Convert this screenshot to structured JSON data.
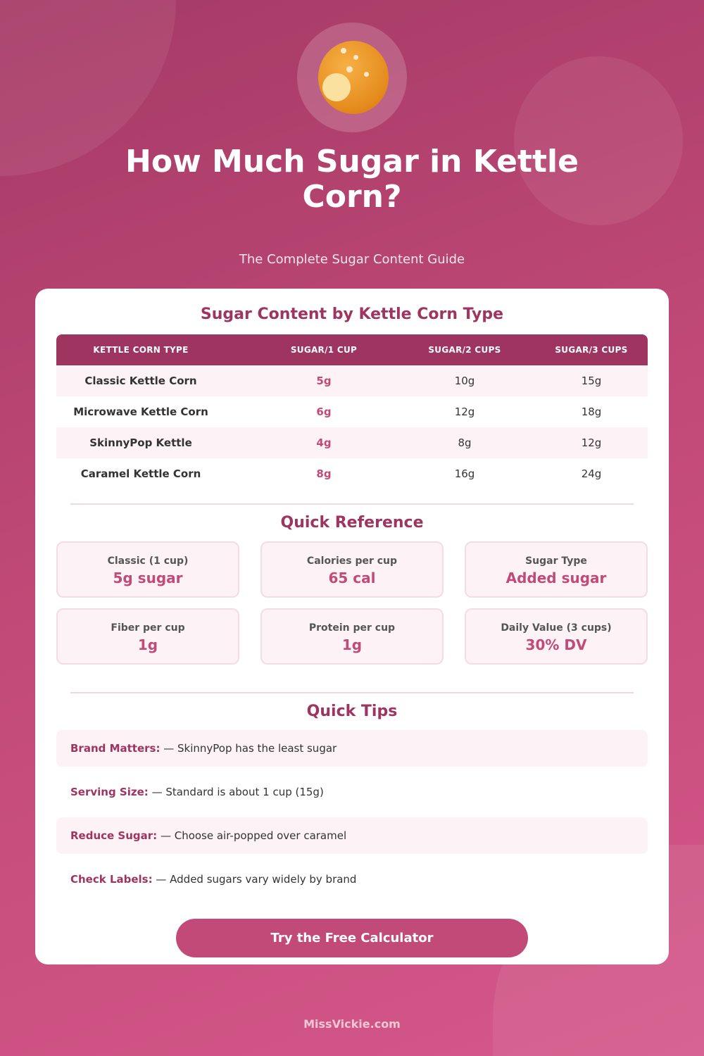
{
  "header": {
    "title": "How Much Sugar in Kettle Corn?",
    "subtitle": "The Complete Sugar Content Guide",
    "logo_icon": "caramel-popcorn-icon"
  },
  "table": {
    "title": "Sugar Content by Kettle Corn Type",
    "columns": [
      "KETTLE CORN TYPE",
      "SUGAR/1 CUP",
      "SUGAR/2 CUPS",
      "SUGAR/3 CUPS"
    ],
    "rows": [
      [
        "Classic Kettle Corn",
        "5g",
        "10g",
        "15g"
      ],
      [
        "Microwave Kettle Corn",
        "6g",
        "12g",
        "18g"
      ],
      [
        "SkinnyPop Kettle",
        "4g",
        "8g",
        "12g"
      ],
      [
        "Caramel Kettle Corn",
        "8g",
        "16g",
        "24g"
      ]
    ]
  },
  "reference": {
    "title": "Quick Reference",
    "items": [
      {
        "label": "Classic (1 cup)",
        "value": "5g sugar"
      },
      {
        "label": "Calories per cup",
        "value": "65 cal"
      },
      {
        "label": "Sugar Type",
        "value": "Added sugar"
      },
      {
        "label": "Fiber per cup",
        "value": "1g"
      },
      {
        "label": "Protein per cup",
        "value": "1g"
      },
      {
        "label": "Daily Value (3 cups)",
        "value": "30% DV"
      }
    ]
  },
  "tips": {
    "title": "Quick Tips",
    "items": [
      {
        "label": "Brand Matters:",
        "text": "— SkinnyPop has the least sugar"
      },
      {
        "label": "Serving Size:",
        "text": "— Standard is about 1 cup (15g)"
      },
      {
        "label": "Reduce Sugar:",
        "text": "— Choose air-popped over caramel"
      },
      {
        "label": "Check Labels:",
        "text": "— Added sugars vary widely by brand"
      }
    ]
  },
  "cta": {
    "label": "Try the Free Calculator"
  },
  "footer": {
    "site": "MissVickie.com"
  },
  "colors": {
    "primary": "#9e3560",
    "accent": "#c24a78"
  }
}
